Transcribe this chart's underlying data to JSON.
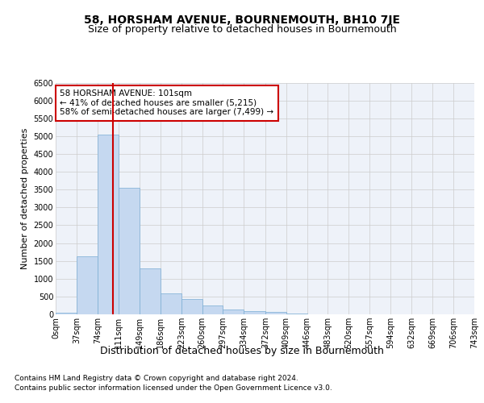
{
  "title": "58, HORSHAM AVENUE, BOURNEMOUTH, BH10 7JE",
  "subtitle": "Size of property relative to detached houses in Bournemouth",
  "xlabel": "Distribution of detached houses by size in Bournemouth",
  "ylabel": "Number of detached properties",
  "footnote1": "Contains HM Land Registry data © Crown copyright and database right 2024.",
  "footnote2": "Contains public sector information licensed under the Open Government Licence v3.0.",
  "annotation_line1": "58 HORSHAM AVENUE: 101sqm",
  "annotation_line2": "← 41% of detached houses are smaller (5,215)",
  "annotation_line3": "58% of semi-detached houses are larger (7,499) →",
  "bar_edges": [
    0,
    37,
    74,
    111,
    149,
    186,
    223,
    260,
    297,
    334,
    372,
    409,
    446,
    483,
    520,
    557,
    594,
    632,
    669,
    706,
    743
  ],
  "bar_heights": [
    50,
    1620,
    5050,
    3560,
    1280,
    580,
    430,
    250,
    130,
    100,
    70,
    30,
    10,
    5,
    3,
    2,
    1,
    1,
    0,
    0
  ],
  "bar_color": "#c5d8f0",
  "bar_edgecolor": "#7aadd4",
  "vline_x": 101,
  "vline_color": "#cc0000",
  "ylim": [
    0,
    6500
  ],
  "yticks": [
    0,
    500,
    1000,
    1500,
    2000,
    2500,
    3000,
    3500,
    4000,
    4500,
    5000,
    5500,
    6000,
    6500
  ],
  "grid_color": "#cccccc",
  "axes_background": "#eef2f9",
  "title_fontsize": 10,
  "subtitle_fontsize": 9,
  "xlabel_fontsize": 9,
  "ylabel_fontsize": 8,
  "tick_fontsize": 7,
  "annotation_fontsize": 7.5,
  "footnote_fontsize": 6.5,
  "tick_labels": [
    "0sqm",
    "37sqm",
    "74sqm",
    "111sqm",
    "149sqm",
    "186sqm",
    "223sqm",
    "260sqm",
    "297sqm",
    "334sqm",
    "372sqm",
    "409sqm",
    "446sqm",
    "483sqm",
    "520sqm",
    "557sqm",
    "594sqm",
    "632sqm",
    "669sqm",
    "706sqm",
    "743sqm"
  ]
}
